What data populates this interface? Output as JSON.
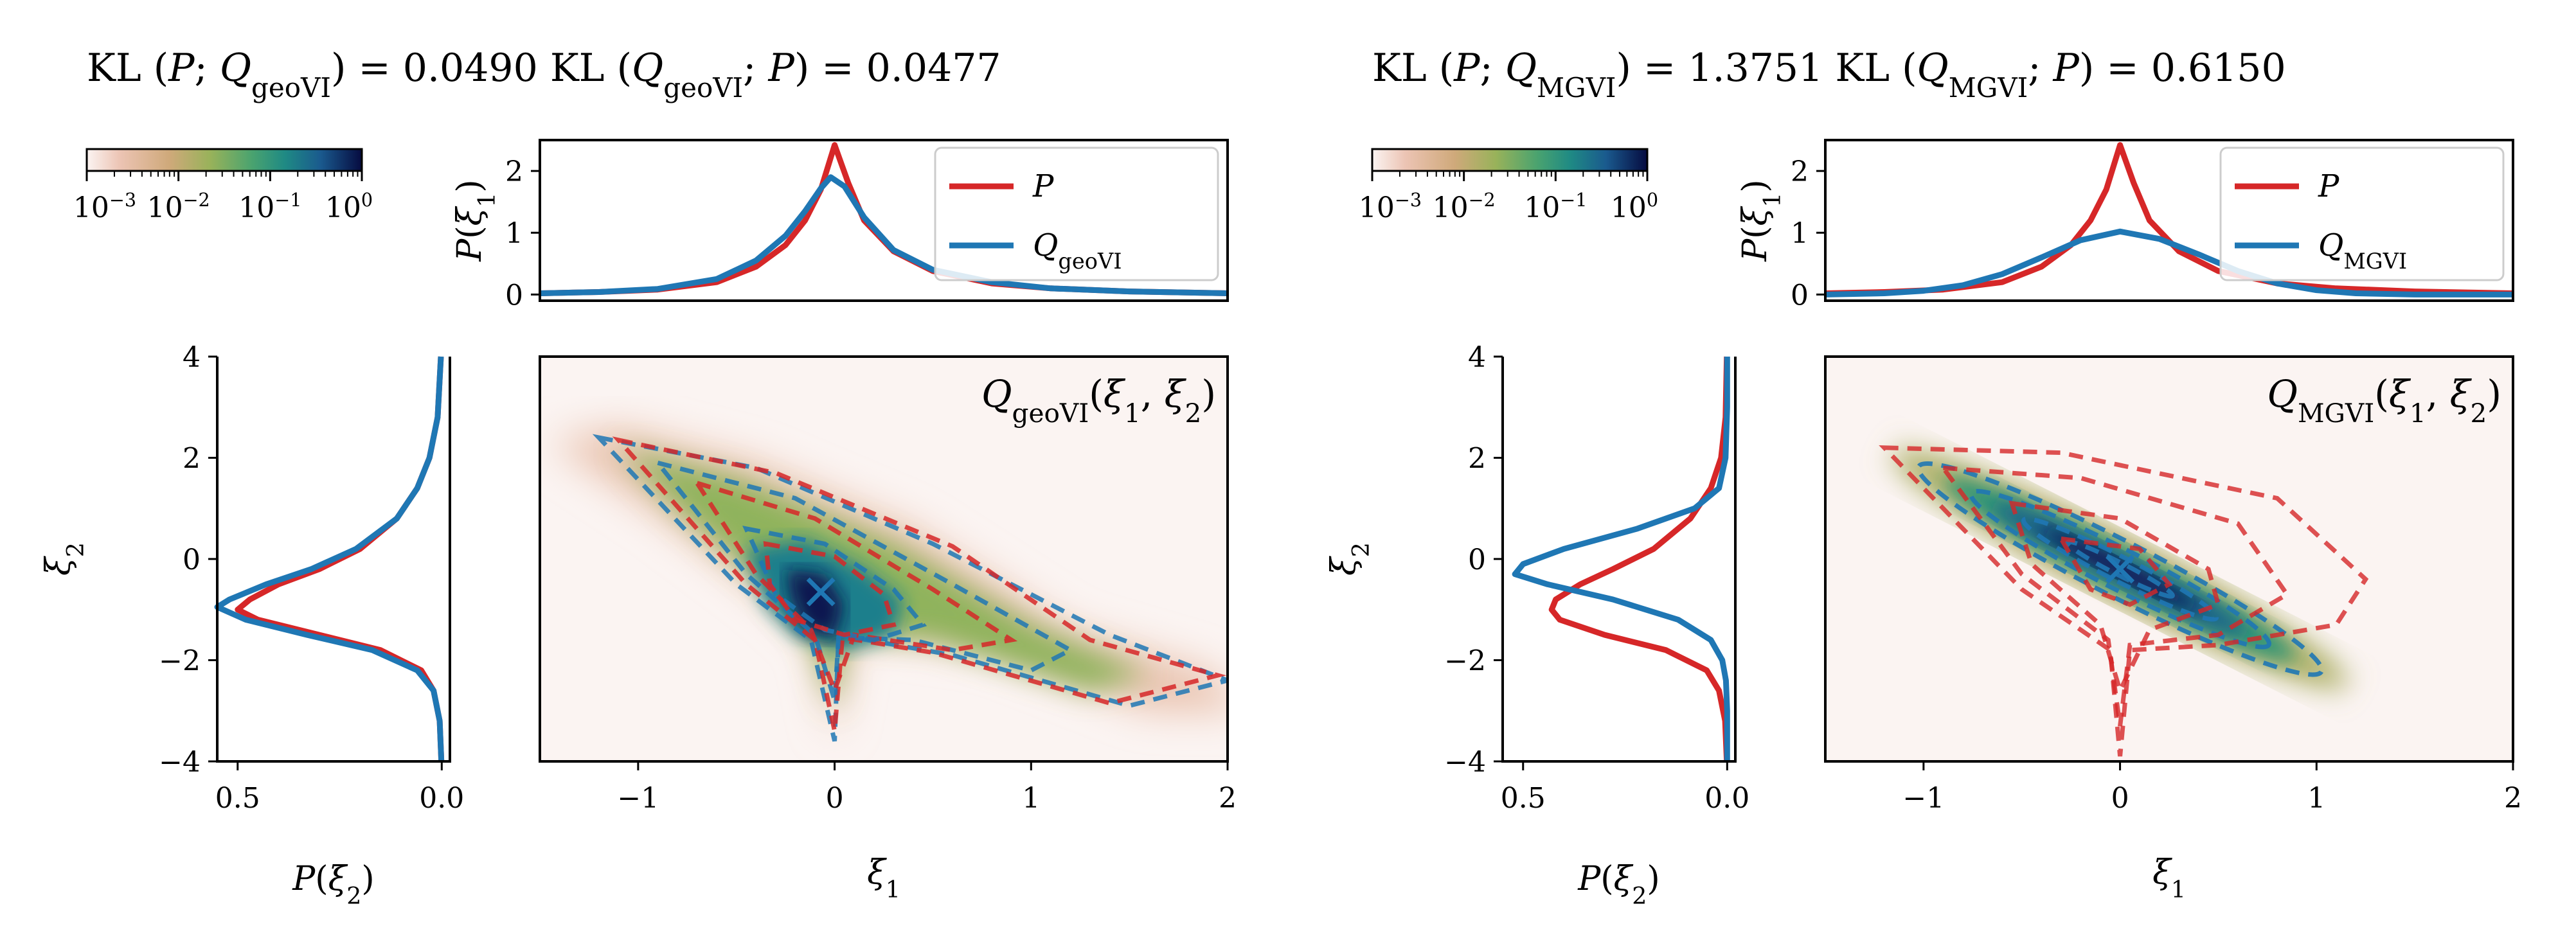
{
  "chart_data": [
    {
      "panel": "geoVI",
      "type": "area",
      "title_parts": [
        {
          "t": "KL",
          "i": false
        },
        {
          "t": " (",
          "i": false
        },
        {
          "t": "P",
          "i": true
        },
        {
          "t": "; ",
          "i": false
        },
        {
          "t": "Q",
          "i": true
        },
        {
          "t": "geoVI",
          "sub": true
        },
        {
          "t": ") = 0.0490",
          "i": false
        },
        {
          "t": "    KL",
          "i": false
        },
        {
          "t": " (",
          "i": false
        },
        {
          "t": "Q",
          "i": true
        },
        {
          "t": "geoVI",
          "sub": true
        },
        {
          "t": "; ",
          "i": false
        },
        {
          "t": "P",
          "i": true
        },
        {
          "t": ") = 0.0477",
          "i": false
        }
      ],
      "kl_forward": 0.049,
      "kl_reverse": 0.0477,
      "colorbar": {
        "scale": "log",
        "ticks": [
          "10",
          "10",
          "10",
          "10"
        ],
        "exponents": [
          "−3",
          "−2",
          "−1",
          "0"
        ],
        "range": [
          0.001,
          1
        ]
      },
      "top_marginal": {
        "ylabel": "P(ξ1)",
        "xlim": [
          -1.5,
          2
        ],
        "ylim": [
          -0.1,
          2.5
        ],
        "yticks": [
          0,
          1,
          2
        ],
        "legend": [
          {
            "name": "P",
            "color": "#d62728"
          },
          {
            "name": "Q",
            "sub": "geoVI",
            "color": "#1f77b4"
          }
        ],
        "legend_placement": "upper-right",
        "series": [
          {
            "name": "P",
            "x": [
              -1.5,
              -1.2,
              -0.9,
              -0.6,
              -0.4,
              -0.25,
              -0.15,
              -0.07,
              0,
              0.07,
              0.15,
              0.3,
              0.5,
              0.8,
              1.1,
              1.5,
              2.0
            ],
            "y": [
              0.02,
              0.04,
              0.08,
              0.2,
              0.45,
              0.8,
              1.2,
              1.7,
              2.42,
              1.8,
              1.2,
              0.7,
              0.38,
              0.18,
              0.1,
              0.05,
              0.02
            ]
          },
          {
            "name": "Q_geoVI",
            "x": [
              -1.5,
              -1.2,
              -0.9,
              -0.6,
              -0.4,
              -0.25,
              -0.15,
              -0.07,
              -0.02,
              0.05,
              0.15,
              0.3,
              0.5,
              0.8,
              1.1,
              1.5,
              2.0
            ],
            "y": [
              0.02,
              0.04,
              0.09,
              0.25,
              0.55,
              0.95,
              1.35,
              1.72,
              1.9,
              1.75,
              1.25,
              0.72,
              0.4,
              0.2,
              0.1,
              0.05,
              0.02
            ]
          }
        ]
      },
      "left_marginal": {
        "xlabel": "P(ξ2)",
        "ylabel": "ξ2",
        "xlim": [
          0.55,
          -0.02
        ],
        "ylim": [
          -4,
          4
        ],
        "xticks": [
          "0.5",
          "0.0"
        ],
        "yticks": [
          -4,
          -2,
          0,
          2,
          4
        ],
        "series": [
          {
            "name": "P",
            "y": [
              -4,
              -3.2,
              -2.6,
              -2.2,
              -1.8,
              -1.5,
              -1.2,
              -1.0,
              -0.8,
              -0.5,
              -0.2,
              0.2,
              0.8,
              1.4,
              2,
              2.8,
              4
            ],
            "x": [
              0.001,
              0.005,
              0.02,
              0.05,
              0.15,
              0.3,
              0.45,
              0.5,
              0.47,
              0.4,
              0.3,
              0.2,
              0.11,
              0.06,
              0.03,
              0.01,
              0.002
            ]
          },
          {
            "name": "Q_geoVI",
            "y": [
              -4,
              -3.2,
              -2.6,
              -2.2,
              -1.8,
              -1.5,
              -1.2,
              -0.95,
              -0.8,
              -0.5,
              -0.2,
              0.2,
              0.8,
              1.4,
              2,
              2.8,
              4
            ],
            "x": [
              0.001,
              0.005,
              0.02,
              0.06,
              0.17,
              0.33,
              0.48,
              0.55,
              0.52,
              0.43,
              0.32,
              0.21,
              0.11,
              0.06,
              0.03,
              0.01,
              0.002
            ]
          }
        ]
      },
      "joint": {
        "annotation_parts": [
          {
            "t": "Q",
            "i": true
          },
          {
            "t": "geoVI",
            "sub": true
          },
          {
            "t": "(",
            "i": false
          },
          {
            "t": "ξ",
            "i": true
          },
          {
            "t": "1",
            "sub": true
          },
          {
            "t": ", ",
            "i": false
          },
          {
            "t": "ξ",
            "i": true
          },
          {
            "t": "2",
            "sub": true
          },
          {
            "t": ")",
            "i": false
          }
        ],
        "xlabel": "ξ1",
        "xlim": [
          -1.5,
          2
        ],
        "ylim": [
          -4,
          4
        ],
        "xticks": [
          -1,
          0,
          1,
          2
        ],
        "marker": {
          "x": -0.07,
          "y": -0.65,
          "symbol": "x",
          "color": "#1f77b4"
        }
      }
    },
    {
      "panel": "MGVI",
      "type": "area",
      "title_parts": [
        {
          "t": "KL",
          "i": false
        },
        {
          "t": " (",
          "i": false
        },
        {
          "t": "P",
          "i": true
        },
        {
          "t": "; ",
          "i": false
        },
        {
          "t": "Q",
          "i": true
        },
        {
          "t": "MGVI",
          "sub": true
        },
        {
          "t": ") = 1.3751",
          "i": false
        },
        {
          "t": "    KL",
          "i": false
        },
        {
          "t": " (",
          "i": false
        },
        {
          "t": "Q",
          "i": true
        },
        {
          "t": "MGVI",
          "sub": true
        },
        {
          "t": "; ",
          "i": false
        },
        {
          "t": "P",
          "i": true
        },
        {
          "t": ") = 0.6150",
          "i": false
        }
      ],
      "kl_forward": 1.3751,
      "kl_reverse": 0.615,
      "colorbar": {
        "scale": "log",
        "ticks": [
          "10",
          "10",
          "10",
          "10"
        ],
        "exponents": [
          "−3",
          "−2",
          "−1",
          "0"
        ],
        "range": [
          0.001,
          1
        ]
      },
      "top_marginal": {
        "ylabel": "P(ξ1)",
        "xlim": [
          -1.5,
          2
        ],
        "ylim": [
          -0.1,
          2.5
        ],
        "yticks": [
          0,
          1,
          2
        ],
        "legend": [
          {
            "name": "P",
            "color": "#d62728"
          },
          {
            "name": "Q",
            "sub": "MGVI",
            "color": "#1f77b4"
          }
        ],
        "legend_placement": "upper-right",
        "series": [
          {
            "name": "P",
            "x": [
              -1.5,
              -1.2,
              -0.9,
              -0.6,
              -0.4,
              -0.25,
              -0.15,
              -0.07,
              0,
              0.07,
              0.15,
              0.3,
              0.5,
              0.8,
              1.1,
              1.5,
              2.0
            ],
            "y": [
              0.02,
              0.04,
              0.08,
              0.2,
              0.45,
              0.8,
              1.2,
              1.7,
              2.42,
              1.8,
              1.2,
              0.7,
              0.38,
              0.18,
              0.1,
              0.05,
              0.02
            ]
          },
          {
            "name": "Q_MGVI",
            "x": [
              -1.5,
              -1.2,
              -1.0,
              -0.8,
              -0.6,
              -0.4,
              -0.2,
              0,
              0.2,
              0.4,
              0.6,
              0.8,
              1.0,
              1.2,
              1.5,
              2.0
            ],
            "y": [
              0.0,
              0.02,
              0.06,
              0.15,
              0.33,
              0.6,
              0.88,
              1.02,
              0.9,
              0.65,
              0.38,
              0.18,
              0.07,
              0.02,
              0.0,
              0.0
            ]
          }
        ]
      },
      "left_marginal": {
        "xlabel": "P(ξ2)",
        "ylabel": "ξ2",
        "xlim": [
          0.55,
          -0.02
        ],
        "ylim": [
          -4,
          4
        ],
        "xticks": [
          "0.5",
          "0.0"
        ],
        "yticks": [
          -4,
          -2,
          0,
          2,
          4
        ],
        "series": [
          {
            "name": "P",
            "y": [
              -4,
              -3.2,
              -2.6,
              -2.2,
              -1.8,
              -1.5,
              -1.2,
              -1.0,
              -0.8,
              -0.5,
              -0.2,
              0.2,
              0.8,
              1.4,
              2,
              2.8,
              4
            ],
            "x": [
              0.001,
              0.005,
              0.02,
              0.05,
              0.15,
              0.3,
              0.41,
              0.43,
              0.42,
              0.36,
              0.28,
              0.18,
              0.09,
              0.04,
              0.015,
              0.004,
              0.001
            ]
          },
          {
            "name": "Q_MGVI",
            "y": [
              -4,
              -3,
              -2.4,
              -2.0,
              -1.6,
              -1.2,
              -0.8,
              -0.5,
              -0.3,
              -0.1,
              0.2,
              0.6,
              1.0,
              1.4,
              2,
              3,
              4
            ],
            "x": [
              0,
              0,
              0.003,
              0.012,
              0.04,
              0.12,
              0.28,
              0.44,
              0.52,
              0.5,
              0.4,
              0.22,
              0.08,
              0.02,
              0.004,
              0,
              0
            ]
          }
        ]
      },
      "joint": {
        "annotation_parts": [
          {
            "t": "Q",
            "i": true
          },
          {
            "t": "MGVI",
            "sub": true
          },
          {
            "t": "(",
            "i": false
          },
          {
            "t": "ξ",
            "i": true
          },
          {
            "t": "1",
            "sub": true
          },
          {
            "t": ", ",
            "i": false
          },
          {
            "t": "ξ",
            "i": true
          },
          {
            "t": "2",
            "sub": true
          },
          {
            "t": ")",
            "i": false
          }
        ],
        "xlabel": "ξ1",
        "xlim": [
          -1.5,
          2
        ],
        "ylim": [
          -4,
          4
        ],
        "xticks": [
          -1,
          0,
          1,
          2
        ],
        "marker": {
          "x": 0.0,
          "y": -0.2,
          "symbol": "x",
          "color": "#1f77b4"
        }
      }
    }
  ],
  "colors": {
    "P": "#d62728",
    "Q": "#1f77b4"
  }
}
